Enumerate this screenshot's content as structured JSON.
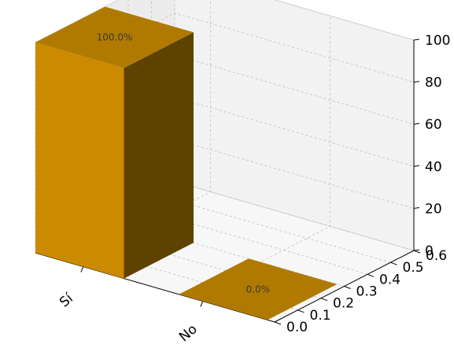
{
  "chart_data": {
    "type": "bar",
    "categories": [
      "Sí",
      "No"
    ],
    "values": [
      100.0,
      0.0
    ],
    "data_labels": [
      "100.0%",
      "0.0%"
    ],
    "z_ticks": [
      "0",
      "20",
      "40",
      "60",
      "80",
      "100"
    ],
    "y_ticks": [
      "0.0",
      "0.1",
      "0.2",
      "0.3",
      "0.4",
      "0.5",
      "0.6"
    ],
    "zlim": [
      0,
      100
    ],
    "ylim": [
      0,
      0.6
    ],
    "grid": true,
    "projection": "3d",
    "colors": {
      "bar_front": "#cc8a00",
      "bar_top": "#b07a00",
      "bar_side": "#5e4300",
      "pane_left": "#ececec",
      "pane_back": "#f2f2f2",
      "pane_floor": "#f7f7f7",
      "grid": "#bdbdbd"
    }
  }
}
